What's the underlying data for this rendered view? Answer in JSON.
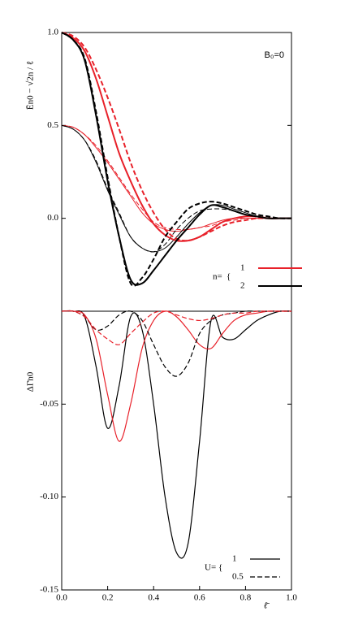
{
  "chart_data": [
    {
      "type": "line",
      "ylabel": "Ēn0 − √2n / ℓ",
      "annotation": "B₀=0",
      "ylim": [
        -0.5,
        1.0
      ],
      "xlim": [
        0,
        1.0
      ],
      "yticks": [
        {
          "value": 0,
          "label": "0.0"
        },
        {
          "value": 0.5,
          "label": "0.5"
        },
        {
          "value": 1.0,
          "label": "1.0"
        }
      ],
      "legend": {
        "title": "n=",
        "entries": [
          {
            "label": "1",
            "color": "#e8212a"
          },
          {
            "label": "2",
            "color": "#000000"
          }
        ]
      },
      "x": [
        0,
        0.05,
        0.1,
        0.15,
        0.2,
        0.25,
        0.3,
        0.35,
        0.4,
        0.45,
        0.5,
        0.55,
        0.6,
        0.65,
        0.7,
        0.75,
        0.8,
        0.85,
        0.9,
        0.95,
        1.0
      ],
      "series": [
        {
          "color": "#e8212a",
          "dashed": false,
          "linewidth": 1,
          "values": [
            0.5,
            0.49,
            0.45,
            0.38,
            0.3,
            0.21,
            0.12,
            0.03,
            -0.03,
            -0.06,
            -0.07,
            -0.06,
            -0.05,
            -0.03,
            -0.01,
            0.0,
            0.0,
            0.0,
            0.0,
            0.0,
            0.0
          ]
        },
        {
          "color": "#e8212a",
          "dashed": true,
          "linewidth": 1,
          "values": [
            0.5,
            0.49,
            0.45,
            0.39,
            0.31,
            0.22,
            0.13,
            0.05,
            -0.02,
            -0.05,
            -0.06,
            -0.06,
            -0.05,
            -0.04,
            -0.02,
            -0.01,
            0.0,
            0.0,
            0.0,
            0.0,
            0.0
          ]
        },
        {
          "color": "#000000",
          "dashed": false,
          "linewidth": 1,
          "values": [
            0.5,
            0.48,
            0.42,
            0.3,
            0.15,
            0.02,
            -0.1,
            -0.16,
            -0.18,
            -0.16,
            -0.1,
            -0.03,
            0.03,
            0.07,
            0.07,
            0.05,
            0.03,
            0.01,
            0.0,
            0.0,
            0.0
          ]
        },
        {
          "color": "#000000",
          "dashed": true,
          "linewidth": 1,
          "values": [
            0.5,
            0.48,
            0.42,
            0.31,
            0.16,
            0.03,
            -0.1,
            -0.16,
            -0.18,
            -0.14,
            -0.06,
            0.0,
            0.04,
            0.05,
            0.05,
            0.04,
            0.02,
            0.01,
            0.0,
            0.0,
            0.0
          ]
        },
        {
          "color": "#e8212a",
          "dashed": false,
          "linewidth": 2,
          "values": [
            1.0,
            0.97,
            0.9,
            0.75,
            0.55,
            0.35,
            0.2,
            0.07,
            -0.03,
            -0.09,
            -0.12,
            -0.12,
            -0.1,
            -0.06,
            -0.02,
            0.0,
            0.01,
            0.01,
            0.0,
            0.0,
            0.0
          ]
        },
        {
          "color": "#e8212a",
          "dashed": true,
          "linewidth": 2,
          "values": [
            1.0,
            0.98,
            0.92,
            0.8,
            0.65,
            0.48,
            0.3,
            0.15,
            0.03,
            -0.06,
            -0.11,
            -0.12,
            -0.1,
            -0.07,
            -0.04,
            -0.02,
            -0.01,
            0.0,
            0.0,
            0.0,
            0.0
          ]
        },
        {
          "color": "#000000",
          "dashed": false,
          "linewidth": 2,
          "values": [
            1.0,
            0.96,
            0.85,
            0.55,
            0.2,
            -0.1,
            -0.33,
            -0.35,
            -0.28,
            -0.2,
            -0.12,
            -0.05,
            0.02,
            0.07,
            0.06,
            0.04,
            0.02,
            0.01,
            0.0,
            0.0,
            0.0
          ]
        },
        {
          "color": "#000000",
          "dashed": true,
          "linewidth": 2,
          "values": [
            1.0,
            0.96,
            0.86,
            0.57,
            0.22,
            -0.1,
            -0.35,
            -0.32,
            -0.22,
            -0.1,
            -0.02,
            0.05,
            0.08,
            0.09,
            0.08,
            0.06,
            0.04,
            0.02,
            0.01,
            0.0,
            0.0
          ]
        }
      ]
    },
    {
      "type": "line",
      "ylabel": "ΔΓ̄n0",
      "xlabel": "ℓ̄",
      "ylim": [
        -0.15,
        0
      ],
      "xlim": [
        0,
        1.0
      ],
      "yticks": [
        {
          "value": -0.15,
          "label": "-0.15"
        },
        {
          "value": -0.1,
          "label": "-0.10"
        },
        {
          "value": -0.05,
          "label": "-0.05"
        }
      ],
      "xticks": [
        {
          "value": 0,
          "label": "0.0"
        },
        {
          "value": 0.2,
          "label": "0.2"
        },
        {
          "value": 0.4,
          "label": "0.4"
        },
        {
          "value": 0.6,
          "label": "0.6"
        },
        {
          "value": 0.8,
          "label": "0.8"
        },
        {
          "value": 1.0,
          "label": "1.0"
        }
      ],
      "legend": {
        "title": "U=",
        "entries": [
          {
            "label": "1",
            "dashed": false
          },
          {
            "label": "0.5",
            "dashed": true
          }
        ]
      },
      "x": [
        0,
        0.05,
        0.1,
        0.15,
        0.2,
        0.25,
        0.3,
        0.35,
        0.4,
        0.45,
        0.5,
        0.55,
        0.6,
        0.65,
        0.7,
        0.75,
        0.8,
        0.85,
        0.9,
        0.95,
        1.0
      ],
      "series": [
        {
          "color": "#000000",
          "dashed": false,
          "linewidth": 1.2,
          "values": [
            0,
            0,
            -0.003,
            -0.03,
            -0.063,
            -0.04,
            -0.003,
            -0.01,
            -0.05,
            -0.1,
            -0.13,
            -0.125,
            -0.07,
            -0.005,
            -0.014,
            -0.015,
            -0.01,
            -0.005,
            -0.002,
            0,
            0
          ]
        },
        {
          "color": "#e8212a",
          "dashed": false,
          "linewidth": 1.2,
          "values": [
            0,
            0,
            -0.002,
            -0.015,
            -0.045,
            -0.07,
            -0.05,
            -0.02,
            -0.005,
            0,
            -0.003,
            -0.01,
            -0.018,
            -0.02,
            -0.012,
            -0.005,
            -0.002,
            -0.001,
            0,
            0,
            0
          ]
        },
        {
          "color": "#000000",
          "dashed": true,
          "linewidth": 1.2,
          "values": [
            0,
            0,
            -0.003,
            -0.01,
            -0.008,
            -0.002,
            0,
            -0.005,
            -0.018,
            -0.03,
            -0.035,
            -0.028,
            -0.012,
            -0.005,
            -0.002,
            -0.001,
            0,
            0,
            0,
            0,
            0
          ]
        },
        {
          "color": "#e8212a",
          "dashed": true,
          "linewidth": 1.2,
          "values": [
            0,
            0,
            -0.003,
            -0.01,
            -0.015,
            -0.018,
            -0.012,
            -0.006,
            -0.001,
            0,
            -0.002,
            -0.004,
            -0.005,
            -0.004,
            -0.002,
            -0.001,
            -0.001,
            0,
            0,
            0,
            0
          ]
        }
      ]
    }
  ]
}
